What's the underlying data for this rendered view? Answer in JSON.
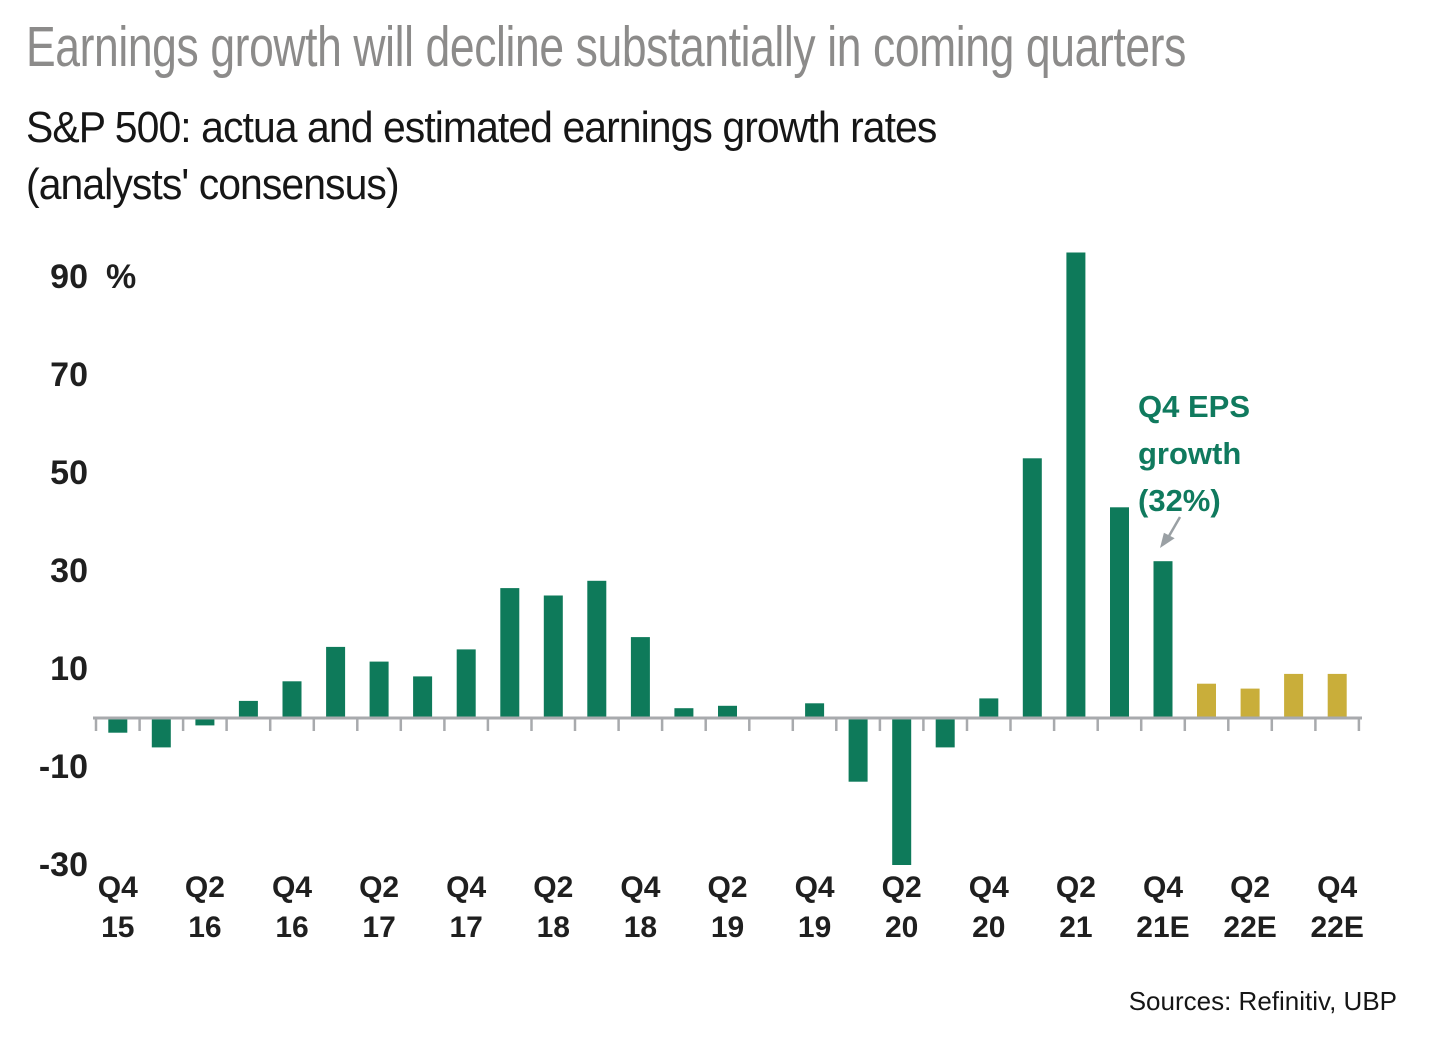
{
  "header": {
    "title": "Earnings growth will decline substantially in coming quarters",
    "subtitle_line1": "S&P 500: actua and estimated earnings growth rates",
    "subtitle_line2": "(analysts' consensus)"
  },
  "annotation": {
    "lines": [
      "Q4 EPS",
      "growth",
      "(32%)"
    ],
    "target_bar_index": 24,
    "target_value": 32
  },
  "source_note": "Sources: Refinitiv, UBP",
  "colors": {
    "actual_bar": "#0e7a5a",
    "estimate_bar": "#c9ae3a",
    "title_text": "#8c8b8a",
    "axis": "#a8aaad",
    "tick_label": "#1f1f1f",
    "annotation_text": "#107a5e",
    "arrow": "#9aa0a4",
    "body_text": "#161616"
  },
  "chart_data": {
    "type": "bar",
    "unit": "%",
    "yticks": [
      90,
      70,
      50,
      30,
      10,
      -10,
      -30
    ],
    "ylim": [
      -33,
      97
    ],
    "grid": false,
    "legend": "none",
    "x_axis_note": "quarter labels shown every second bar, Q4 2015 through Q4 2022E; E = estimated (gold bars)",
    "bars": [
      {
        "value": -3,
        "kind": "actual",
        "label": [
          "Q4",
          "15"
        ]
      },
      {
        "value": -6,
        "kind": "actual"
      },
      {
        "value": -1.5,
        "kind": "actual",
        "label": [
          "Q2",
          "16"
        ]
      },
      {
        "value": 3.5,
        "kind": "actual"
      },
      {
        "value": 7.5,
        "kind": "actual",
        "label": [
          "Q4",
          "16"
        ]
      },
      {
        "value": 14.5,
        "kind": "actual"
      },
      {
        "value": 11.5,
        "kind": "actual",
        "label": [
          "Q2",
          "17"
        ]
      },
      {
        "value": 8.5,
        "kind": "actual"
      },
      {
        "value": 14,
        "kind": "actual",
        "label": [
          "Q4",
          "17"
        ]
      },
      {
        "value": 26.5,
        "kind": "actual"
      },
      {
        "value": 25,
        "kind": "actual",
        "label": [
          "Q2",
          "18"
        ]
      },
      {
        "value": 28,
        "kind": "actual"
      },
      {
        "value": 16.5,
        "kind": "actual",
        "label": [
          "Q4",
          "18"
        ]
      },
      {
        "value": 2,
        "kind": "actual"
      },
      {
        "value": 2.5,
        "kind": "actual",
        "label": [
          "Q2",
          "19"
        ]
      },
      {
        "value": 0,
        "kind": "actual"
      },
      {
        "value": 3,
        "kind": "actual",
        "label": [
          "Q4",
          "19"
        ]
      },
      {
        "value": -13,
        "kind": "actual"
      },
      {
        "value": -30,
        "kind": "actual",
        "label": [
          "Q2",
          "20"
        ]
      },
      {
        "value": -6,
        "kind": "actual"
      },
      {
        "value": 4,
        "kind": "actual",
        "label": [
          "Q4",
          "20"
        ]
      },
      {
        "value": 53,
        "kind": "actual"
      },
      {
        "value": 95,
        "kind": "actual",
        "label": [
          "Q2",
          "21"
        ]
      },
      {
        "value": 43,
        "kind": "actual"
      },
      {
        "value": 32,
        "kind": "actual",
        "label": [
          "Q4",
          "21E"
        ],
        "annotated": true
      },
      {
        "value": 7,
        "kind": "estimate"
      },
      {
        "value": 6,
        "kind": "estimate",
        "label": [
          "Q2",
          "22E"
        ]
      },
      {
        "value": 9,
        "kind": "estimate"
      },
      {
        "value": 9,
        "kind": "estimate",
        "label": [
          "Q4",
          "22E"
        ]
      }
    ]
  }
}
